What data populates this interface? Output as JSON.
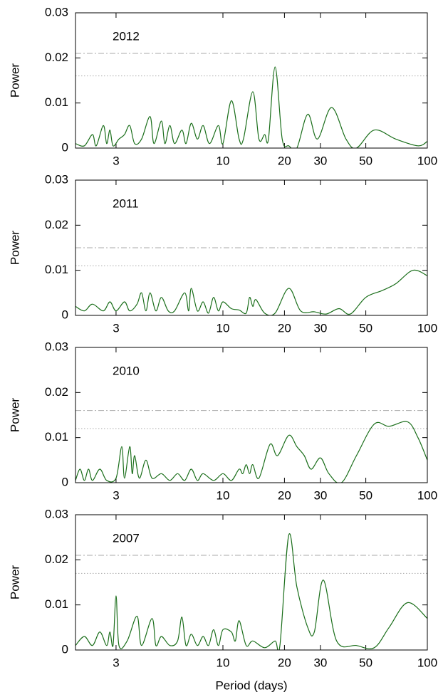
{
  "chart_data": [
    {
      "type": "line",
      "annotation": "2012",
      "ylabel": "Power",
      "xscale": "log",
      "xlim": [
        1.9,
        100
      ],
      "xticks": [
        3,
        10,
        20,
        30,
        50,
        100
      ],
      "ylim": [
        0,
        0.03
      ],
      "yticks": [
        0,
        0.01,
        0.02,
        0.03
      ],
      "thresholds": [
        {
          "value": 0.021,
          "style": "dashdot"
        },
        {
          "value": 0.016,
          "style": "dotted"
        }
      ],
      "threshold_color": "#aaaaaa",
      "series": [
        {
          "color": "#1a6e1a",
          "x": [
            1.9,
            2.1,
            2.3,
            2.4,
            2.6,
            2.7,
            2.8,
            2.9,
            3.1,
            3.3,
            3.5,
            3.7,
            4.0,
            4.4,
            4.6,
            5.0,
            5.2,
            5.5,
            5.8,
            6.3,
            6.6,
            7.0,
            7.5,
            8.0,
            8.6,
            9.5,
            10.0,
            11.0,
            12.0,
            12.6,
            14.0,
            15.0,
            16.0,
            16.7,
            18.0,
            19.5,
            21,
            23,
            26,
            29,
            34,
            40,
            45,
            55,
            70,
            90,
            100
          ],
          "values": [
            0.001,
            0.0005,
            0.003,
            0.0005,
            0.005,
            0.001,
            0.004,
            0.0005,
            0.002,
            0.003,
            0.005,
            0.001,
            0.002,
            0.007,
            0.001,
            0.006,
            0.001,
            0.005,
            0.001,
            0.004,
            0.001,
            0.0055,
            0.002,
            0.005,
            0.001,
            0.005,
            0.001,
            0.0105,
            0.002,
            0.002,
            0.0125,
            0.002,
            0.003,
            0.002,
            0.018,
            0.002,
            0.0005,
            0,
            0.0075,
            0.002,
            0.009,
            0.002,
            0,
            0.004,
            0.002,
            0.0005,
            0.0015
          ]
        }
      ]
    },
    {
      "type": "line",
      "annotation": "2011",
      "ylabel": "Power",
      "xscale": "log",
      "xlim": [
        1.9,
        100
      ],
      "xticks": [
        3,
        10,
        20,
        30,
        50,
        100
      ],
      "ylim": [
        0,
        0.03
      ],
      "yticks": [
        0,
        0.01,
        0.02,
        0.03
      ],
      "thresholds": [
        {
          "value": 0.015,
          "style": "dashdot"
        },
        {
          "value": 0.011,
          "style": "dotted"
        }
      ],
      "threshold_color": "#aaaaaa",
      "series": [
        {
          "color": "#1a6e1a",
          "x": [
            1.9,
            2.1,
            2.3,
            2.6,
            2.8,
            3.0,
            3.3,
            3.5,
            3.8,
            4.0,
            4.2,
            4.4,
            4.7,
            5.0,
            5.4,
            5.8,
            6.5,
            6.8,
            7.0,
            7.5,
            8.0,
            8.5,
            9.0,
            9.5,
            10.0,
            11.0,
            12.0,
            13.0,
            13.5,
            14.0,
            14.5,
            16.0,
            18.0,
            21,
            24,
            28,
            32,
            37,
            42,
            50,
            60,
            70,
            85,
            100
          ],
          "values": [
            0.002,
            0.001,
            0.0025,
            0.001,
            0.003,
            0.001,
            0.003,
            0.001,
            0.0025,
            0.005,
            0.001,
            0.005,
            0.001,
            0.004,
            0.001,
            0.001,
            0.005,
            0.001,
            0.006,
            0.001,
            0.003,
            0.0005,
            0.004,
            0.001,
            0.003,
            0.0015,
            0.0012,
            0.0005,
            0.004,
            0.002,
            0.0035,
            0.0005,
            0.0005,
            0.006,
            0.001,
            0.0008,
            0.0003,
            0.0015,
            0.0003,
            0.004,
            0.0055,
            0.007,
            0.01,
            0.0088
          ]
        }
      ]
    },
    {
      "type": "line",
      "annotation": "2010",
      "ylabel": "Power",
      "xscale": "log",
      "xlim": [
        1.9,
        100
      ],
      "xticks": [
        3,
        10,
        20,
        30,
        50,
        100
      ],
      "ylim": [
        0,
        0.03
      ],
      "yticks": [
        0,
        0.01,
        0.02,
        0.03
      ],
      "thresholds": [
        {
          "value": 0.016,
          "style": "dashdot"
        },
        {
          "value": 0.012,
          "style": "dotted"
        }
      ],
      "threshold_color": "#aaaaaa",
      "series": [
        {
          "color": "#1a6e1a",
          "x": [
            1.9,
            2.0,
            2.1,
            2.2,
            2.3,
            2.5,
            2.7,
            3.0,
            3.2,
            3.3,
            3.5,
            3.6,
            3.7,
            3.9,
            4.2,
            4.5,
            5.0,
            5.5,
            6.0,
            6.5,
            7.0,
            7.5,
            8.0,
            9.0,
            10.0,
            11.0,
            12.0,
            12.5,
            13.0,
            13.5,
            14.0,
            15.0,
            17.0,
            18.5,
            21,
            23,
            25,
            27,
            30,
            33,
            38,
            45,
            55,
            65,
            80,
            90,
            100
          ],
          "values": [
            0.0005,
            0.003,
            0.0005,
            0.003,
            0.0005,
            0.003,
            0.0005,
            0.001,
            0.008,
            0.001,
            0.008,
            0.002,
            0.006,
            0.001,
            0.005,
            0.001,
            0.002,
            0.0005,
            0.002,
            0.0005,
            0.003,
            0.0005,
            0.002,
            0.0005,
            0.002,
            0.0005,
            0.003,
            0.002,
            0.004,
            0.002,
            0.004,
            0.001,
            0.0085,
            0.006,
            0.0105,
            0.008,
            0.006,
            0.003,
            0.0055,
            0.002,
            0,
            0.006,
            0.013,
            0.0125,
            0.0135,
            0.01,
            0.005
          ]
        }
      ]
    },
    {
      "type": "line",
      "annotation": "2007",
      "ylabel": "Power",
      "xlabel": "Period (days)",
      "xscale": "log",
      "xlim": [
        1.9,
        100
      ],
      "xticks": [
        3,
        10,
        20,
        30,
        50,
        100
      ],
      "ylim": [
        0,
        0.03
      ],
      "yticks": [
        0,
        0.01,
        0.02,
        0.03
      ],
      "thresholds": [
        {
          "value": 0.021,
          "style": "dashdot"
        },
        {
          "value": 0.017,
          "style": "dotted"
        }
      ],
      "threshold_color": "#aaaaaa",
      "series": [
        {
          "color": "#1a6e1a",
          "x": [
            1.9,
            2.1,
            2.3,
            2.5,
            2.7,
            2.8,
            2.9,
            3.0,
            3.1,
            3.4,
            3.8,
            4.0,
            4.5,
            4.7,
            5.0,
            5.5,
            6.0,
            6.3,
            6.6,
            7.0,
            7.5,
            8.0,
            8.5,
            9.0,
            9.5,
            10.0,
            11.0,
            11.5,
            12.0,
            13.0,
            14.0,
            16.0,
            18.0,
            19.0,
            21,
            23,
            26,
            28,
            31,
            36,
            45,
            55,
            65,
            80,
            100
          ],
          "values": [
            0.001,
            0.003,
            0.001,
            0.004,
            0.001,
            0.004,
            0.001,
            0.012,
            0.001,
            0.002,
            0.0075,
            0.001,
            0.007,
            0.001,
            0.003,
            0.001,
            0.002,
            0.0073,
            0.001,
            0.0035,
            0.001,
            0.003,
            0.001,
            0.0045,
            0.001,
            0.0045,
            0.004,
            0.002,
            0.0065,
            0.001,
            0.002,
            0.0005,
            0.002,
            0.001,
            0.0255,
            0.014,
            0.005,
            0.004,
            0.0155,
            0.002,
            0.001,
            0.0005,
            0.005,
            0.0105,
            0.007
          ]
        }
      ]
    }
  ]
}
